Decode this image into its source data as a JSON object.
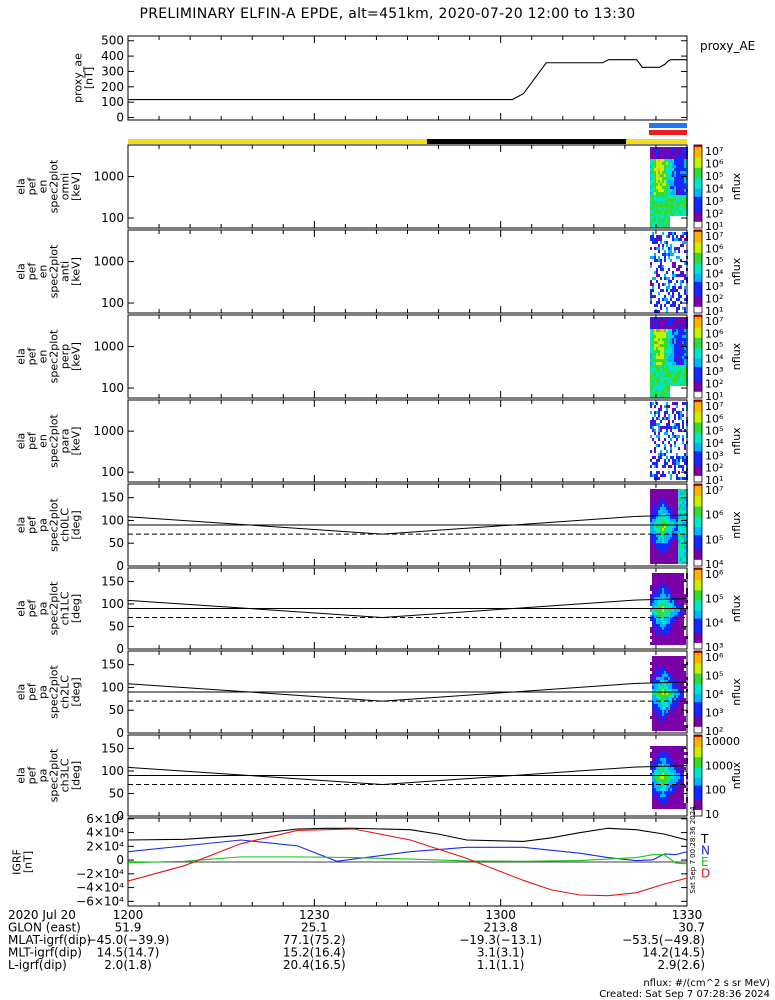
{
  "title": "PRELIMINARY ELFIN-A EPDE, alt=451km, 2020-07-20 12:00 to 13:30",
  "colors": {
    "sunlit": "#f5dc1e",
    "eclipse": "#000000",
    "bar_blue": "#1e78f0",
    "bar_red": "#e61e1e",
    "grf_t": "#000000",
    "grf_n": "#1e28e6",
    "grf_e": "#14c814",
    "grf_d": "#e61414"
  },
  "chart_data": [
    {
      "type": "line",
      "ylabel_lines": [
        "proxy_ae",
        "[nT]"
      ],
      "legend": "proxy_AE",
      "yticks": [
        "500",
        "400",
        "300",
        "200",
        "100",
        "0"
      ],
      "ylim": [
        0,
        520
      ],
      "x_minutes": [
        0,
        10,
        20,
        30,
        40,
        50,
        60,
        68,
        70,
        72,
        74,
        76,
        78,
        80,
        82,
        84,
        85,
        86,
        88,
        90,
        91,
        92,
        93,
        94,
        95,
        95.5,
        96,
        98,
        99
      ],
      "values": [
        120,
        120,
        120,
        120,
        120,
        120,
        120,
        120,
        160,
        260,
        360,
        360,
        360,
        360,
        360,
        360,
        380,
        380,
        380,
        380,
        330,
        330,
        330,
        330,
        350,
        370,
        380,
        380,
        380
      ]
    },
    {
      "type": "heatmap",
      "ylabel_lines": [
        "ela",
        "pef",
        "en",
        "spec2plot",
        "omni",
        "[keV]"
      ],
      "yticks": [
        "1000",
        "100"
      ],
      "zlabel": "nflux",
      "zticks": [
        "10⁷",
        "10⁶",
        "10⁵",
        "10⁴",
        "10³",
        "10²",
        "10¹"
      ]
    },
    {
      "type": "heatmap",
      "ylabel_lines": [
        "ela",
        "pef",
        "en",
        "spec2plot",
        "anti",
        "[keV]"
      ],
      "yticks": [
        "1000",
        "100"
      ],
      "zlabel": "nflux",
      "zticks": [
        "10⁷",
        "10⁶",
        "10⁵",
        "10⁴",
        "10³",
        "10²",
        "10¹"
      ]
    },
    {
      "type": "heatmap",
      "ylabel_lines": [
        "ela",
        "pef",
        "en",
        "spec2plot",
        "perp",
        "[keV]"
      ],
      "yticks": [
        "1000",
        "100"
      ],
      "zlabel": "nflux",
      "zticks": [
        "10⁷",
        "10⁶",
        "10⁵",
        "10⁴",
        "10³",
        "10²",
        "10¹"
      ]
    },
    {
      "type": "heatmap",
      "ylabel_lines": [
        "ela",
        "pef",
        "en",
        "spec2plot",
        "para",
        "[keV]"
      ],
      "yticks": [
        "1000",
        "100"
      ],
      "zlabel": "nflux",
      "zticks": [
        "10⁷",
        "10⁶",
        "10⁵",
        "10⁴",
        "10³",
        "10²",
        "10¹"
      ]
    },
    {
      "type": "heatmap",
      "ylabel_lines": [
        "ela",
        "pef",
        "pa",
        "spec2plot",
        "ch0LC",
        "[deg]"
      ],
      "yticks": [
        "150",
        "100",
        "50",
        "0"
      ],
      "zlabel": "nflux",
      "zticks": [
        "10⁷",
        "10⁶",
        "10⁵",
        "10⁴"
      ]
    },
    {
      "type": "heatmap",
      "ylabel_lines": [
        "ela",
        "pef",
        "pa",
        "spec2plot",
        "ch1LC",
        "[deg]"
      ],
      "yticks": [
        "150",
        "100",
        "50",
        "0"
      ],
      "zlabel": "nflux",
      "zticks": [
        "10⁶",
        "10⁵",
        "10⁴",
        "10³"
      ]
    },
    {
      "type": "heatmap",
      "ylabel_lines": [
        "ela",
        "pef",
        "pa",
        "spec2plot",
        "ch2LC",
        "[deg]"
      ],
      "yticks": [
        "150",
        "100",
        "50",
        "0"
      ],
      "zlabel": "nflux",
      "zticks": [
        "10⁶",
        "10⁵",
        "10⁴",
        "10³",
        "10²"
      ]
    },
    {
      "type": "heatmap",
      "ylabel_lines": [
        "ela",
        "pef",
        "pa",
        "spec2plot",
        "ch3LC",
        "[deg]"
      ],
      "yticks": [
        "150",
        "100",
        "50",
        "0"
      ],
      "zlabel": "nflux",
      "zticks": [
        "10000",
        "1000",
        "100",
        "10"
      ]
    },
    {
      "type": "line",
      "ylabel_lines": [
        "IGRF",
        "[nT]"
      ],
      "yticks": [
        "6×10⁴",
        "4×10⁴",
        "2×10⁴",
        "0",
        "−2×10⁴",
        "−4×10⁴",
        "−6×10⁴"
      ],
      "ylim": [
        -60000,
        60000
      ],
      "series": [
        {
          "name": "T",
          "x_minutes": [
            0,
            10,
            20,
            30,
            35,
            40,
            50,
            55,
            60,
            70,
            75,
            80,
            85,
            90,
            95,
            99
          ],
          "values": [
            30000,
            31000,
            36000,
            45000,
            46000,
            46000,
            44000,
            38000,
            30000,
            28000,
            33000,
            40000,
            46000,
            44000,
            38000,
            30000
          ]
        },
        {
          "name": "N",
          "x_minutes": [
            0,
            10,
            20,
            30,
            37,
            40,
            50,
            60,
            70,
            75,
            80,
            85,
            90,
            93,
            95,
            97,
            99
          ],
          "values": [
            14000,
            22000,
            30000,
            22000,
            1000,
            4000,
            14000,
            20000,
            20000,
            16000,
            12000,
            6000,
            2000,
            3000,
            11000,
            10000,
            14000
          ]
        },
        {
          "name": "E",
          "x_minutes": [
            0,
            10,
            20,
            30,
            40,
            50,
            60,
            70,
            80,
            90,
            93,
            95,
            97,
            99
          ],
          "values": [
            -1000,
            1000,
            7000,
            7000,
            6000,
            4000,
            1500,
            1000,
            2000,
            6000,
            10000,
            10000,
            -1500,
            -2500
          ]
        },
        {
          "name": "D",
          "x_minutes": [
            0,
            10,
            20,
            30,
            40,
            50,
            60,
            70,
            75,
            80,
            85,
            90,
            95,
            99
          ],
          "values": [
            -26000,
            -5000,
            25000,
            43000,
            45000,
            30000,
            5000,
            -25000,
            -38000,
            -45000,
            -46000,
            -42000,
            -30000,
            -22000
          ]
        }
      ]
    }
  ],
  "xaxis": {
    "labels": [
      {
        "minute": 0,
        "text": "1200"
      },
      {
        "minute": 30,
        "text": "1230"
      },
      {
        "minute": 60,
        "text": "1300"
      },
      {
        "minute": 90,
        "text": "1330"
      }
    ]
  },
  "footer": {
    "rows": [
      {
        "label": "2020 Jul 20",
        "values": [
          "1200",
          "1230",
          "1300",
          "1330"
        ]
      },
      {
        "label": "GLON (east)",
        "values": [
          "51.9",
          "25.1",
          "213.8",
          "30.7"
        ]
      },
      {
        "label": "MLAT-igrf(dip)",
        "values": [
          "−45.0(−39.9)",
          "77.1(75.2)",
          "−19.3(−13.1)",
          "−53.5(−49.8)"
        ]
      },
      {
        "label": "MLT-igrf(dip)",
        "values": [
          "14.5(14.7)",
          "15.2(16.4)",
          "3.1(3.1)",
          "14.2(14.5)"
        ]
      },
      {
        "label": "L-igrf(dip)",
        "values": [
          "2.0(1.8)",
          "20.4(16.5)",
          "1.1(1.1)",
          "2.9(2.6)"
        ]
      }
    ],
    "units_note": "nflux: #/(cm^2 s sr MeV)",
    "created": "Created: Sat Sep  7 07:28:36 2024",
    "side_stamp": "Sat Sep  7 00:28:36 2024"
  }
}
